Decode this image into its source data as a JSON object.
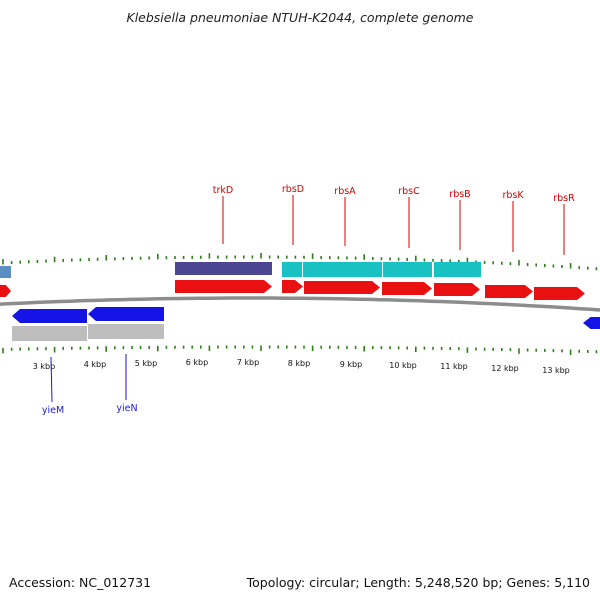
{
  "header": {
    "title": "Klebsiella pneumoniae NTUH-K2044, complete genome"
  },
  "footer": {
    "accession": "Accession: NC_012731",
    "summary": "Topology: circular; Length: 5,248,520 bp; Genes: 5,110"
  },
  "colors": {
    "backbone": "#8c8c8c",
    "tick": "#2e7d1a",
    "forward_gene": "#e81010",
    "reverse_gene": "#1414e6",
    "cds_purple": "#4a4692",
    "cds_cyan": "#19c2c2",
    "cds_gray": "#bdbdbd",
    "forward_label": "#d40000",
    "reverse_label": "#1a1ad0"
  },
  "kbp_labels": [
    "3 kbp",
    "4 kbp",
    "5 kbp",
    "6 kbp",
    "7 kbp",
    "8 kbp",
    "9 kbp",
    "10 kbp",
    "11 kbp",
    "12 kbp",
    "13 kbp"
  ],
  "forward_gene_labels": [
    "trkD",
    "rbsD",
    "rbsA",
    "rbsC",
    "rbsB",
    "rbsK",
    "rbsR"
  ],
  "reverse_gene_labels": [
    "yieM",
    "yieN"
  ]
}
